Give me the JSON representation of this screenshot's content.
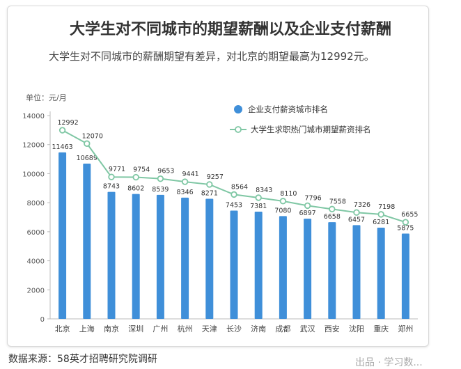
{
  "page": {
    "source": "数据来源：58英才招聘研究院调研",
    "watermark": "出品 · 学习数..."
  },
  "chart_data": {
    "type": "bar",
    "title": "大学生对不同城市的期望薪酬以及企业支付薪酬",
    "subtitle": "大学生对不同城市的薪酬期望有差异，对北京的期望最高为12992元。",
    "unit_label": "单位：元/月",
    "categories": [
      "北京",
      "上海",
      "南京",
      "深圳",
      "广州",
      "杭州",
      "天津",
      "长沙",
      "济南",
      "成都",
      "武汉",
      "西安",
      "沈阳",
      "重庆",
      "郑州"
    ],
    "ylim": [
      0,
      14000
    ],
    "yticks": [
      0,
      2000,
      4000,
      6000,
      8000,
      10000,
      12000,
      14000
    ],
    "legend_position": "top-right",
    "series": [
      {
        "name": "企业支付薪资城市排名",
        "type": "bar",
        "color": "#3f8fd9",
        "values": [
          11463,
          10689,
          8743,
          8602,
          8539,
          8346,
          8271,
          7453,
          7381,
          7080,
          6897,
          6658,
          6457,
          6281,
          5875
        ]
      },
      {
        "name": "大学生求职热门城市期望薪资排名",
        "type": "line",
        "color": "#7fc7a4",
        "values": [
          12992,
          12070,
          9771,
          9754,
          9653,
          9441,
          9257,
          8564,
          8343,
          8110,
          7796,
          7558,
          7326,
          7198,
          6655
        ]
      }
    ]
  }
}
